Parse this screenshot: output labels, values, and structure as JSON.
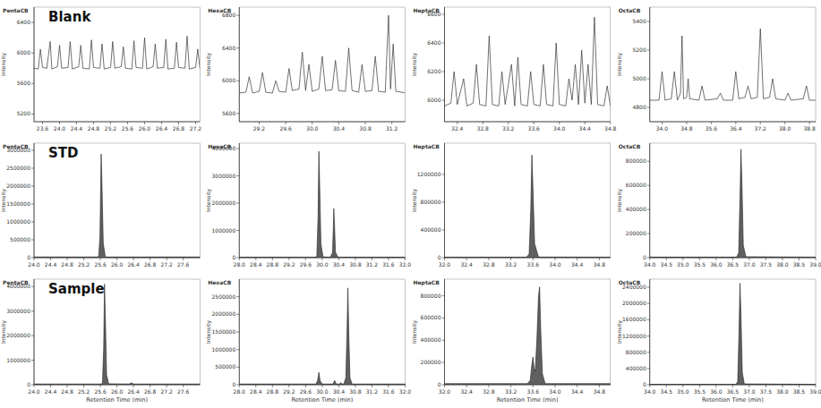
{
  "chart_data": [
    {
      "type": "line",
      "title": "PentaCB",
      "y_label": "Intensity",
      "annotation": "Blank",
      "color": "#333333",
      "xlim": [
        23.4,
        27.3
      ],
      "xticks": [
        23.6,
        24.0,
        24.4,
        24.8,
        25.2,
        25.6,
        26.0,
        26.4,
        26.8,
        27.2
      ],
      "ylim": [
        5100,
        6600
      ],
      "yticks": [
        5200,
        5600,
        6000,
        6400
      ],
      "x": [
        23.4,
        23.5,
        23.55,
        23.6,
        23.7,
        23.78,
        23.82,
        23.95,
        24.0,
        24.05,
        24.2,
        24.25,
        24.3,
        24.45,
        24.5,
        24.55,
        24.7,
        24.75,
        24.8,
        24.95,
        25.0,
        25.05,
        25.2,
        25.25,
        25.3,
        25.45,
        25.5,
        25.55,
        25.7,
        25.75,
        25.8,
        25.95,
        26.0,
        26.05,
        26.2,
        26.25,
        26.3,
        26.45,
        26.5,
        26.55,
        26.7,
        26.75,
        26.8,
        26.95,
        27.0,
        27.05,
        27.2,
        27.25,
        27.3
      ],
      "values": [
        5800,
        5790,
        6050,
        5810,
        5800,
        6150,
        5790,
        5820,
        6100,
        5800,
        5810,
        6150,
        5790,
        5820,
        6100,
        5800,
        5790,
        6170,
        5810,
        5800,
        6120,
        5790,
        5810,
        6150,
        5800,
        5820,
        6080,
        5800,
        5790,
        6160,
        5810,
        5800,
        6200,
        5790,
        5820,
        6120,
        5800,
        5810,
        6180,
        5790,
        5800,
        6140,
        5810,
        5800,
        6220,
        5790,
        5810,
        6050,
        5800
      ]
    },
    {
      "type": "line",
      "title": "HexaCB",
      "y_label": "Intensity",
      "color": "#333333",
      "xlim": [
        28.9,
        31.4
      ],
      "xticks": [
        29.2,
        29.6,
        30.0,
        30.4,
        30.8,
        31.2
      ],
      "ylim": [
        5500,
        6900
      ],
      "yticks": [
        5600,
        6000,
        6400,
        6800
      ],
      "x": [
        28.9,
        29.0,
        29.05,
        29.1,
        29.2,
        29.25,
        29.3,
        29.4,
        29.45,
        29.5,
        29.6,
        29.65,
        29.7,
        29.8,
        29.85,
        29.9,
        29.95,
        30.0,
        30.1,
        30.15,
        30.2,
        30.3,
        30.35,
        30.4,
        30.5,
        30.55,
        30.6,
        30.7,
        30.75,
        30.8,
        30.9,
        30.95,
        31.0,
        31.1,
        31.15,
        31.18,
        31.22,
        31.26,
        31.35,
        31.4
      ],
      "values": [
        5850,
        5860,
        6050,
        5850,
        5870,
        6100,
        5860,
        5850,
        6000,
        5870,
        5860,
        6150,
        5880,
        5900,
        6350,
        5880,
        6200,
        5870,
        5900,
        6300,
        5880,
        5890,
        6250,
        5880,
        5870,
        6400,
        5880,
        5860,
        6200,
        5870,
        5880,
        6300,
        5870,
        5860,
        6800,
        5900,
        6450,
        5870,
        5860,
        5850
      ]
    },
    {
      "type": "line",
      "title": "HeptaCB",
      "y_label": "Intensity",
      "color": "#333333",
      "xlim": [
        32.2,
        34.8
      ],
      "xticks": [
        32.4,
        32.8,
        33.2,
        33.6,
        34.0,
        34.4,
        34.8
      ],
      "ylim": [
        5850,
        6650
      ],
      "yticks": [
        6000,
        6200,
        6400,
        6600
      ],
      "x": [
        32.2,
        32.3,
        32.35,
        32.4,
        32.5,
        32.55,
        32.65,
        32.7,
        32.75,
        32.85,
        32.9,
        32.95,
        33.05,
        33.1,
        33.15,
        33.25,
        33.3,
        33.35,
        33.4,
        33.5,
        33.55,
        33.6,
        33.7,
        33.75,
        33.8,
        33.9,
        33.95,
        34.0,
        34.1,
        34.15,
        34.2,
        34.25,
        34.3,
        34.35,
        34.4,
        34.45,
        34.5,
        34.55,
        34.6,
        34.7,
        34.75,
        34.8
      ],
      "values": [
        5960,
        5980,
        6200,
        5970,
        6150,
        5960,
        5980,
        6250,
        5970,
        5960,
        6450,
        5970,
        5960,
        6200,
        5970,
        6250,
        5960,
        6300,
        5970,
        5960,
        6200,
        5970,
        5960,
        6250,
        5970,
        5960,
        6400,
        5970,
        5960,
        6150,
        6000,
        6250,
        5970,
        6350,
        5980,
        6250,
        5970,
        6580,
        5970,
        5960,
        6100,
        5960
      ]
    },
    {
      "type": "line",
      "title": "OctaCB",
      "y_label": "Intensity",
      "color": "#333333",
      "xlim": [
        33.6,
        39.0
      ],
      "xticks": [
        34.0,
        34.8,
        35.6,
        36.4,
        37.2,
        38.0,
        38.8
      ],
      "ylim": [
        4700,
        5500
      ],
      "yticks": [
        4800,
        5000,
        5200,
        5400
      ],
      "x": [
        33.6,
        33.9,
        34.0,
        34.1,
        34.3,
        34.4,
        34.5,
        34.6,
        34.65,
        34.7,
        34.8,
        34.85,
        34.9,
        35.2,
        35.3,
        35.4,
        35.8,
        35.9,
        36.0,
        36.3,
        36.4,
        36.5,
        36.7,
        36.8,
        36.9,
        37.1,
        37.2,
        37.3,
        37.5,
        37.6,
        37.7,
        38.0,
        38.1,
        38.2,
        38.6,
        38.7,
        38.8,
        39.0
      ],
      "values": [
        4850,
        4850,
        5050,
        4850,
        4860,
        5050,
        4850,
        4900,
        5300,
        4860,
        4870,
        5000,
        4860,
        4850,
        4950,
        4850,
        4860,
        4900,
        4850,
        4850,
        5050,
        4860,
        4870,
        4950,
        4860,
        4870,
        5350,
        4860,
        4870,
        5000,
        4860,
        4850,
        4900,
        4850,
        4860,
        4950,
        4850,
        4850
      ]
    },
    {
      "type": "area",
      "title": "PentaCB",
      "y_label": "Intensity",
      "annotation": "STD",
      "color": "#606060",
      "xlim": [
        24.0,
        28.0
      ],
      "xticks": [
        24.0,
        24.4,
        24.8,
        25.2,
        25.6,
        26.0,
        26.4,
        26.8,
        27.2,
        27.6
      ],
      "ylim": [
        0,
        3200000
      ],
      "yticks": [
        0,
        500000,
        1000000,
        1500000,
        2000000,
        2500000,
        3000000
      ],
      "x": [
        24.0,
        25.5,
        25.56,
        25.59,
        25.61,
        25.62,
        25.64,
        25.67,
        25.72,
        28.0
      ],
      "values": [
        20000,
        20000,
        30000,
        600000,
        2200000,
        2900000,
        2000000,
        400000,
        20000,
        20000
      ]
    },
    {
      "type": "area",
      "title": "HexaCB",
      "y_label": "Intensity",
      "color": "#606060",
      "xlim": [
        28.0,
        32.0
      ],
      "xticks": [
        28.0,
        28.4,
        28.8,
        29.2,
        29.6,
        30.0,
        30.4,
        30.8,
        31.2,
        31.6,
        32.0
      ],
      "ylim": [
        0,
        4200000
      ],
      "yticks": [
        0,
        1000000,
        2000000,
        3000000,
        4000000
      ],
      "x": [
        28.0,
        29.82,
        29.87,
        29.9,
        29.92,
        29.94,
        29.97,
        30.02,
        30.2,
        30.25,
        30.27,
        30.28,
        30.3,
        30.32,
        30.38,
        32.0
      ],
      "values": [
        20000,
        20000,
        40000,
        1500000,
        3900000,
        2600000,
        500000,
        30000,
        20000,
        200000,
        1200000,
        1800000,
        1100000,
        200000,
        20000,
        20000
      ]
    },
    {
      "type": "area",
      "title": "HeptaCB",
      "y_label": "Intensity",
      "color": "#606060",
      "xlim": [
        32.0,
        35.0
      ],
      "xticks": [
        32.0,
        32.4,
        32.8,
        33.2,
        33.6,
        34.0,
        34.4,
        34.8
      ],
      "ylim": [
        0,
        1650000
      ],
      "yticks": [
        0,
        400000,
        800000,
        1200000
      ],
      "x": [
        32.0,
        33.48,
        33.53,
        33.56,
        33.58,
        33.6,
        33.63,
        33.7,
        35.0
      ],
      "values": [
        8000,
        8000,
        50000,
        700000,
        1480000,
        1000000,
        200000,
        10000,
        8000
      ]
    },
    {
      "type": "area",
      "title": "OctaCB",
      "y_label": "Intensity",
      "color": "#606060",
      "xlim": [
        34.0,
        39.0
      ],
      "xticks": [
        34.0,
        34.5,
        35.0,
        35.5,
        36.0,
        36.5,
        37.0,
        37.5,
        38.0,
        38.5,
        39.0
      ],
      "ylim": [
        0,
        950000
      ],
      "yticks": [
        0,
        200000,
        400000,
        600000,
        800000
      ],
      "x": [
        34.0,
        36.62,
        36.68,
        36.72,
        36.75,
        36.78,
        36.82,
        36.9,
        39.0
      ],
      "values": [
        5000,
        5000,
        40000,
        500000,
        900000,
        600000,
        100000,
        8000,
        5000
      ]
    },
    {
      "type": "area",
      "title": "PentaCB",
      "y_label": "Intensity",
      "x_label": "Retention Time (min)",
      "annotation": "Sample",
      "color": "#606060",
      "xlim": [
        24.0,
        28.0
      ],
      "xticks": [
        24.0,
        24.4,
        24.8,
        25.2,
        25.6,
        26.0,
        26.4,
        26.8,
        27.2,
        27.6
      ],
      "ylim": [
        0,
        4300000
      ],
      "yticks": [
        0,
        1000000,
        2000000,
        3000000,
        4000000
      ],
      "x": [
        24.0,
        25.6,
        25.65,
        25.68,
        25.7,
        25.72,
        25.75,
        25.8,
        26.3,
        26.35,
        26.4,
        28.0
      ],
      "values": [
        30000,
        30000,
        50000,
        1500000,
        4100000,
        2800000,
        400000,
        40000,
        30000,
        80000,
        30000,
        30000
      ]
    },
    {
      "type": "area",
      "title": "HexaCB",
      "y_label": "Intensity",
      "x_label": "Retention Time (min)",
      "color": "#606060",
      "xlim": [
        28.0,
        32.0
      ],
      "xticks": [
        28.0,
        28.4,
        28.8,
        29.2,
        29.6,
        30.0,
        30.4,
        30.8,
        31.2,
        31.6,
        32.0
      ],
      "ylim": [
        0,
        3000000
      ],
      "yticks": [
        0,
        500000,
        1000000,
        1500000,
        2000000,
        2500000
      ],
      "x": [
        28.0,
        29.85,
        29.89,
        29.92,
        29.95,
        30.0,
        30.26,
        30.3,
        30.34,
        30.42,
        30.45,
        30.48,
        30.52,
        30.57,
        30.6,
        30.62,
        30.64,
        30.67,
        30.72,
        32.0
      ],
      "values": [
        20000,
        20000,
        120000,
        350000,
        110000,
        20000,
        20000,
        120000,
        20000,
        20000,
        60000,
        20000,
        20000,
        200000,
        1600000,
        2750000,
        1500000,
        200000,
        20000,
        20000
      ]
    },
    {
      "type": "area",
      "title": "HeptaCB",
      "y_label": "Intensity",
      "x_label": "Retention Time (min)",
      "color": "#606060",
      "xlim": [
        32.0,
        35.0
      ],
      "xticks": [
        32.0,
        32.4,
        32.8,
        33.2,
        33.6,
        34.0,
        34.4,
        34.8
      ],
      "ylim": [
        0,
        950000
      ],
      "yticks": [
        0,
        200000,
        400000,
        600000,
        800000
      ],
      "x": [
        32.0,
        33.5,
        33.55,
        33.58,
        33.6,
        33.62,
        33.64,
        33.67,
        33.7,
        33.72,
        33.74,
        33.77,
        33.82,
        35.0
      ],
      "values": [
        10000,
        10000,
        40000,
        180000,
        250000,
        150000,
        120000,
        400000,
        800000,
        880000,
        500000,
        100000,
        10000,
        10000
      ]
    },
    {
      "type": "area",
      "title": "OctaCB",
      "y_label": "Intensity",
      "x_label": "Retention Time (min)",
      "color": "#606060",
      "xlim": [
        34.0,
        39.0
      ],
      "xticks": [
        34.0,
        34.5,
        35.0,
        35.5,
        36.0,
        36.5,
        37.0,
        37.5,
        38.0,
        38.5,
        39.0
      ],
      "ylim": [
        0,
        2600000
      ],
      "yticks": [
        0,
        400000,
        800000,
        1200000,
        1600000,
        2000000,
        2400000
      ],
      "x": [
        34.0,
        36.6,
        36.65,
        36.69,
        36.72,
        36.75,
        36.79,
        36.85,
        39.0
      ],
      "values": [
        10000,
        10000,
        80000,
        1300000,
        2500000,
        1700000,
        300000,
        20000,
        10000
      ]
    }
  ]
}
